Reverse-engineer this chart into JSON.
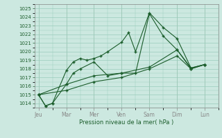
{
  "xlabel": "Pression niveau de la mer( hPa )",
  "ylim": [
    1013.5,
    1025.5
  ],
  "yticks": [
    1014,
    1015,
    1016,
    1017,
    1018,
    1019,
    1020,
    1021,
    1022,
    1023,
    1024,
    1025
  ],
  "days": [
    "Jeu",
    "Mar",
    "Mer",
    "Ven",
    "Sam",
    "Dim",
    "Lun"
  ],
  "day_positions": [
    0,
    2,
    4,
    6,
    8,
    10,
    12
  ],
  "xlim": [
    -0.3,
    13.0
  ],
  "background_color": "#cce8e0",
  "grid_color": "#99ccbb",
  "line_color": "#1a5c2a",
  "lines": [
    {
      "x": [
        0,
        0.5,
        1.0,
        2,
        2.5,
        3,
        3.5,
        4,
        4.5,
        5,
        6,
        6.5,
        7,
        8,
        9,
        10,
        11,
        12
      ],
      "y": [
        1015.0,
        1013.7,
        1014.0,
        1017.8,
        1018.8,
        1019.2,
        1019.0,
        1019.2,
        1019.5,
        1020.0,
        1021.1,
        1022.2,
        1020.0,
        1024.5,
        1022.8,
        1021.5,
        1018.1,
        1018.5
      ]
    },
    {
      "x": [
        0,
        0.5,
        1.0,
        2,
        2.5,
        3,
        4,
        5,
        6,
        7,
        8,
        9,
        10,
        11,
        12
      ],
      "y": [
        1015.0,
        1013.7,
        1014.0,
        1016.2,
        1017.5,
        1018.0,
        1018.8,
        1017.2,
        1017.5,
        1017.5,
        1024.4,
        1021.8,
        1020.2,
        1018.0,
        1018.5
      ]
    },
    {
      "x": [
        0,
        2,
        4,
        6,
        8,
        10,
        11,
        12
      ],
      "y": [
        1015.0,
        1016.2,
        1017.2,
        1017.5,
        1018.2,
        1020.2,
        1018.1,
        1018.5
      ]
    },
    {
      "x": [
        0,
        2,
        4,
        6,
        8,
        10,
        11,
        12
      ],
      "y": [
        1015.0,
        1015.5,
        1016.5,
        1017.0,
        1018.0,
        1019.5,
        1018.0,
        1018.5
      ]
    }
  ]
}
